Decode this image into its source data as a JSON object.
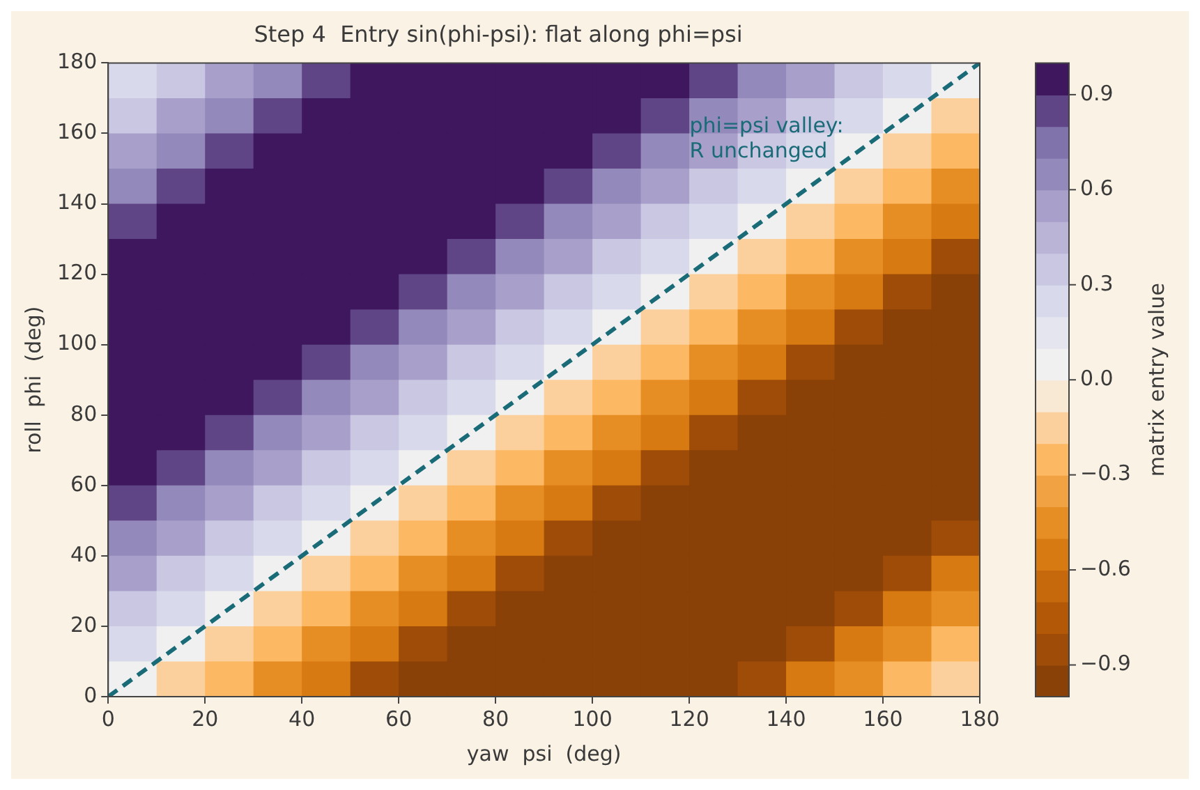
{
  "chart_data": {
    "type": "heatmap",
    "title": "Step 4  Entry sin(phi-psi): flat along phi=psi",
    "xlabel": "yaw  psi  (deg)",
    "ylabel": "roll  phi  (deg)",
    "clabel": "matrix entry value",
    "xlim": [
      0,
      180
    ],
    "ylim": [
      0,
      180
    ],
    "xticks": [
      0,
      20,
      40,
      60,
      80,
      100,
      120,
      140,
      160,
      180
    ],
    "yticks": [
      0,
      20,
      40,
      60,
      80,
      100,
      120,
      140,
      160,
      180
    ],
    "grid": false,
    "clim": [
      -1,
      1
    ],
    "cticks": [
      {
        "value": -0.9,
        "label": "−0.9"
      },
      {
        "value": -0.6,
        "label": "−0.6"
      },
      {
        "value": -0.3,
        "label": "−0.3"
      },
      {
        "value": 0,
        "label": "0.0"
      },
      0.3,
      0.6,
      0.9
    ],
    "cells": [
      [
        0.2,
        0.3,
        0.5,
        0.6,
        0.8,
        0.9,
        0.9,
        1,
        1,
        1,
        0.9,
        0.9,
        0.8,
        0.6,
        0.5,
        0.3,
        0.2,
        0
      ],
      [
        0.3,
        0.5,
        0.6,
        0.8,
        0.9,
        0.9,
        1,
        1,
        1,
        0.9,
        0.9,
        0.8,
        0.6,
        0.5,
        0.3,
        0.2,
        0,
        -0.2
      ],
      [
        0.5,
        0.6,
        0.8,
        0.9,
        0.9,
        1,
        1,
        1,
        0.9,
        0.9,
        0.8,
        0.6,
        0.5,
        0.3,
        0.2,
        0,
        -0.2,
        -0.3
      ],
      [
        0.6,
        0.8,
        0.9,
        0.9,
        1,
        1,
        1,
        0.9,
        0.9,
        0.8,
        0.6,
        0.5,
        0.3,
        0.2,
        0,
        -0.2,
        -0.3,
        -0.5
      ],
      [
        0.8,
        0.9,
        0.9,
        1,
        1,
        1,
        0.9,
        0.9,
        0.8,
        0.6,
        0.5,
        0.3,
        0.2,
        0,
        -0.2,
        -0.3,
        -0.5,
        -0.6
      ],
      [
        0.9,
        0.9,
        1,
        1,
        1,
        0.9,
        0.9,
        0.8,
        0.6,
        0.5,
        0.3,
        0.2,
        0,
        -0.2,
        -0.3,
        -0.5,
        -0.6,
        -0.8
      ],
      [
        0.9,
        1,
        1,
        1,
        0.9,
        0.9,
        0.8,
        0.6,
        0.5,
        0.3,
        0.2,
        0,
        -0.2,
        -0.3,
        -0.5,
        -0.6,
        -0.8,
        -0.9
      ],
      [
        1,
        1,
        1,
        0.9,
        0.9,
        0.8,
        0.6,
        0.5,
        0.3,
        0.2,
        0,
        -0.2,
        -0.3,
        -0.5,
        -0.6,
        -0.8,
        -0.9,
        -0.9
      ],
      [
        1,
        1,
        0.9,
        0.9,
        0.8,
        0.6,
        0.5,
        0.3,
        0.2,
        0,
        -0.2,
        -0.3,
        -0.5,
        -0.6,
        -0.8,
        -0.9,
        -0.9,
        -1
      ],
      [
        1,
        0.9,
        0.9,
        0.8,
        0.6,
        0.5,
        0.3,
        0.2,
        0,
        -0.2,
        -0.3,
        -0.5,
        -0.6,
        -0.8,
        -0.9,
        -0.9,
        -1,
        -1
      ],
      [
        0.9,
        0.9,
        0.8,
        0.6,
        0.5,
        0.3,
        0.2,
        0,
        -0.2,
        -0.3,
        -0.5,
        -0.6,
        -0.8,
        -0.9,
        -0.9,
        -1,
        -1,
        -1
      ],
      [
        0.9,
        0.8,
        0.6,
        0.5,
        0.3,
        0.2,
        0,
        -0.2,
        -0.3,
        -0.5,
        -0.6,
        -0.8,
        -0.9,
        -0.9,
        -1,
        -1,
        -1,
        -0.9
      ],
      [
        0.8,
        0.6,
        0.5,
        0.3,
        0.2,
        0,
        -0.2,
        -0.3,
        -0.5,
        -0.6,
        -0.8,
        -0.9,
        -0.9,
        -1,
        -1,
        -1,
        -0.9,
        -0.9
      ],
      [
        0.6,
        0.5,
        0.3,
        0.2,
        0,
        -0.2,
        -0.3,
        -0.5,
        -0.6,
        -0.8,
        -0.9,
        -0.9,
        -1,
        -1,
        -1,
        -0.9,
        -0.9,
        -0.8
      ],
      [
        0.5,
        0.3,
        0.2,
        0,
        -0.2,
        -0.3,
        -0.5,
        -0.6,
        -0.8,
        -0.9,
        -0.9,
        -1,
        -1,
        -1,
        -0.9,
        -0.9,
        -0.8,
        -0.6
      ],
      [
        0.3,
        0.2,
        0,
        -0.2,
        -0.3,
        -0.5,
        -0.6,
        -0.8,
        -0.9,
        -0.9,
        -1,
        -1,
        -1,
        -0.9,
        -0.9,
        -0.8,
        -0.6,
        -0.5
      ],
      [
        0.2,
        0,
        -0.2,
        -0.3,
        -0.5,
        -0.6,
        -0.8,
        -0.9,
        -0.9,
        -1,
        -1,
        -1,
        -0.9,
        -0.9,
        -0.8,
        -0.6,
        -0.5,
        -0.3
      ],
      [
        0,
        -0.2,
        -0.3,
        -0.5,
        -0.6,
        -0.8,
        -0.9,
        -0.9,
        -1,
        -1,
        -1,
        -0.9,
        -0.9,
        -0.8,
        -0.6,
        -0.5,
        -0.3,
        -0.2
      ]
    ],
    "series": [
      {
        "type": "line",
        "x": [
          0,
          180
        ],
        "values": [
          0,
          180
        ],
        "color": "#1a6b78",
        "line_style": "dashed",
        "marker": "none"
      }
    ],
    "annotations": [
      "phi=psi valley:\nR unchanged"
    ]
  }
}
